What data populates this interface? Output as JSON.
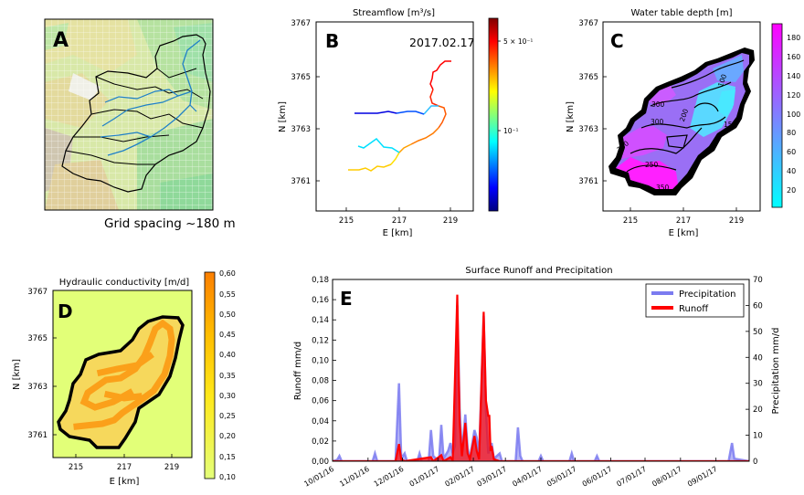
{
  "panels": {
    "A": {
      "letter": "A",
      "caption": "Grid spacing ~180 m"
    },
    "B": {
      "letter": "B",
      "title": "Streamflow [m³/s]",
      "date": "2017.02.17",
      "xlabel": "E [km]",
      "ylabel": "N [km]",
      "xticks": [
        "215",
        "217",
        "219"
      ],
      "yticks": [
        "3761",
        "3763",
        "3765",
        "3767"
      ],
      "cbar_ticks": [
        "5 × 10⁻¹",
        "10⁻¹"
      ]
    },
    "C": {
      "letter": "C",
      "title": "Water table depth [m]",
      "xlabel": "E [km]",
      "ylabel": "N [km]",
      "xticks": [
        "215",
        "217",
        "219"
      ],
      "yticks": [
        "3761",
        "3763",
        "3765",
        "3767"
      ],
      "cbar_ticks": [
        "20",
        "40",
        "60",
        "80",
        "100",
        "120",
        "140",
        "160",
        "180"
      ],
      "contour_labels": [
        "300",
        "300",
        "200",
        "100",
        "150",
        "350",
        "250",
        "350"
      ]
    },
    "D": {
      "letter": "D",
      "title": "Hydraulic conductivity [m/d]",
      "xlabel": "E [km]",
      "ylabel": "N [km]",
      "xticks": [
        "215",
        "217",
        "219"
      ],
      "yticks": [
        "3761",
        "3763",
        "3765",
        "3767"
      ],
      "cbar_ticks": [
        "0,60",
        "0,55",
        "0,50",
        "0,45",
        "0,40",
        "0,35",
        "0,30",
        "0,25",
        "0,20",
        "0,15",
        "0,10"
      ]
    }
  },
  "chart_data": {
    "type": "area",
    "panel_letter": "E",
    "title": "Surface Runoff and Precipitation",
    "ylabel_left": "Runoff mm/d",
    "ylabel_right": "Precipitation mm/d",
    "ylim_left": [
      0,
      0.18
    ],
    "ylim_right": [
      0,
      70
    ],
    "yticks_left": [
      "0,00",
      "0,02",
      "0,04",
      "0,06",
      "0,08",
      "0,10",
      "0,12",
      "0,14",
      "0,16",
      "0,18"
    ],
    "yticks_right": [
      "0",
      "10",
      "20",
      "30",
      "40",
      "50",
      "60",
      "70"
    ],
    "xticks": [
      "10/01/16",
      "11/01/16",
      "12/01/16",
      "01/01/17",
      "02/01/17",
      "03/01/17",
      "04/01/17",
      "05/01/17",
      "06/01/17",
      "07/01/17",
      "08/01/17",
      "09/01/17"
    ],
    "xrange": [
      "2016-10-01",
      "2017-09-30"
    ],
    "legend_position": "top-right",
    "series": [
      {
        "name": "Precipitation",
        "color": "#7b7bf0",
        "axis": "right",
        "points": [
          [
            "2016-10-01",
            0
          ],
          [
            "2016-10-05",
            0.5
          ],
          [
            "2016-10-07",
            2
          ],
          [
            "2016-10-09",
            0
          ],
          [
            "2016-11-05",
            0
          ],
          [
            "2016-11-07",
            3
          ],
          [
            "2016-11-09",
            0
          ],
          [
            "2016-11-25",
            0
          ],
          [
            "2016-11-28",
            30
          ],
          [
            "2016-11-30",
            1
          ],
          [
            "2016-12-03",
            3
          ],
          [
            "2016-12-05",
            0
          ],
          [
            "2016-12-14",
            0
          ],
          [
            "2016-12-16",
            3
          ],
          [
            "2016-12-18",
            0
          ],
          [
            "2016-12-24",
            0
          ],
          [
            "2016-12-26",
            12
          ],
          [
            "2016-12-28",
            2
          ],
          [
            "2017-01-02",
            0
          ],
          [
            "2017-01-04",
            14
          ],
          [
            "2017-01-06",
            1
          ],
          [
            "2017-01-10",
            4
          ],
          [
            "2017-01-12",
            7
          ],
          [
            "2017-01-14",
            3
          ],
          [
            "2017-01-16",
            6
          ],
          [
            "2017-01-18",
            60
          ],
          [
            "2017-01-20",
            20
          ],
          [
            "2017-01-22",
            3
          ],
          [
            "2017-01-25",
            18
          ],
          [
            "2017-01-27",
            5
          ],
          [
            "2017-01-29",
            1
          ],
          [
            "2017-02-02",
            12
          ],
          [
            "2017-02-04",
            9
          ],
          [
            "2017-02-06",
            2
          ],
          [
            "2017-02-10",
            56
          ],
          [
            "2017-02-12",
            20
          ],
          [
            "2017-02-14",
            3
          ],
          [
            "2017-02-17",
            7
          ],
          [
            "2017-02-19",
            1
          ],
          [
            "2017-02-24",
            3
          ],
          [
            "2017-02-26",
            0
          ],
          [
            "2017-03-10",
            0
          ],
          [
            "2017-03-12",
            13
          ],
          [
            "2017-03-14",
            2
          ],
          [
            "2017-03-16",
            0
          ],
          [
            "2017-03-30",
            0
          ],
          [
            "2017-04-01",
            2
          ],
          [
            "2017-04-03",
            0
          ],
          [
            "2017-04-26",
            0
          ],
          [
            "2017-04-28",
            3
          ],
          [
            "2017-04-30",
            0
          ],
          [
            "2017-05-18",
            0
          ],
          [
            "2017-05-20",
            2
          ],
          [
            "2017-05-22",
            0
          ],
          [
            "2017-09-12",
            0
          ],
          [
            "2017-09-15",
            7
          ],
          [
            "2017-09-17",
            1
          ],
          [
            "2017-09-30",
            0
          ]
        ]
      },
      {
        "name": "Runoff",
        "color": "#ff0000",
        "axis": "left",
        "points": [
          [
            "2016-10-01",
            0
          ],
          [
            "2016-11-25",
            0
          ],
          [
            "2016-11-28",
            0.017
          ],
          [
            "2016-11-30",
            0.002
          ],
          [
            "2016-12-03",
            0
          ],
          [
            "2016-12-26",
            0.004
          ],
          [
            "2016-12-28",
            0
          ],
          [
            "2017-01-04",
            0.006
          ],
          [
            "2017-01-06",
            0
          ],
          [
            "2017-01-12",
            0.004
          ],
          [
            "2017-01-14",
            0.001
          ],
          [
            "2017-01-18",
            0.165
          ],
          [
            "2017-01-20",
            0.04
          ],
          [
            "2017-01-22",
            0.005
          ],
          [
            "2017-01-25",
            0.038
          ],
          [
            "2017-01-27",
            0.008
          ],
          [
            "2017-01-29",
            0.002
          ],
          [
            "2017-02-02",
            0.025
          ],
          [
            "2017-02-04",
            0.01
          ],
          [
            "2017-02-06",
            0.002
          ],
          [
            "2017-02-10",
            0.148
          ],
          [
            "2017-02-12",
            0.06
          ],
          [
            "2017-02-14",
            0.045
          ],
          [
            "2017-02-15",
            0.045
          ],
          [
            "2017-02-16",
            0.01
          ],
          [
            "2017-02-17",
            0.015
          ],
          [
            "2017-02-19",
            0.002
          ],
          [
            "2017-02-24",
            0
          ],
          [
            "2017-09-30",
            0
          ]
        ]
      }
    ]
  }
}
